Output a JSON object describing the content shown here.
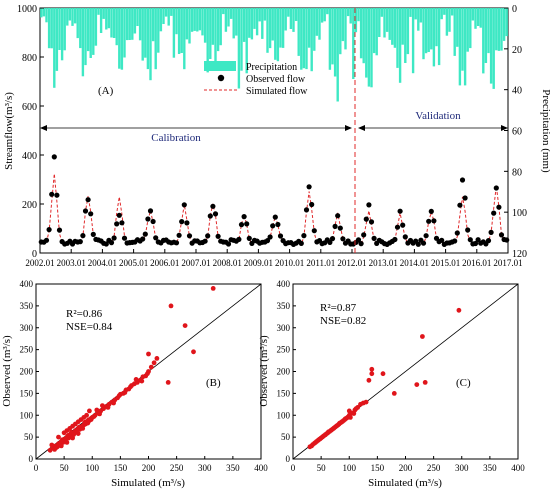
{
  "chart_data": [
    {
      "panel_label": "(A)",
      "type": "line",
      "ylabel": "Streamflow(m³/s)",
      "y2label": "Precipitation (mm)",
      "ylim": [
        0,
        1000
      ],
      "y2lim": [
        120,
        0
      ],
      "xlim": [
        2002.01,
        2017.01
      ],
      "yticks": [
        "0",
        "200",
        "400",
        "600",
        "800",
        "1000"
      ],
      "y2ticks": [
        "0",
        "20",
        "40",
        "60",
        "80",
        "100",
        "120"
      ],
      "xticks": [
        "2002.01",
        "2003.01",
        "2004.01",
        "2005.01",
        "2006.01",
        "2007.01",
        "2008.01",
        "2009.01",
        "2010.01",
        "2011.01",
        "2012.01",
        "2013.01",
        "2014.01",
        "2015.01",
        "2016.01",
        "2017.01"
      ],
      "legend": {
        "position": "top-center",
        "entries": [
          "Precipitation",
          "Observed flow",
          "Simulated flow"
        ]
      },
      "period_labels": {
        "calibration": "Calibration",
        "validation": "Validation",
        "split": 2012.01
      },
      "annual_peaks_observed": [
        {
          "year": 2002,
          "value": 390
        },
        {
          "year": 2003,
          "value": 245
        },
        {
          "year": 2004,
          "value": 180
        },
        {
          "year": 2005,
          "value": 200
        },
        {
          "year": 2006,
          "value": 195
        },
        {
          "year": 2007,
          "value": 220
        },
        {
          "year": 2008,
          "value": 175
        },
        {
          "year": 2009,
          "value": 160
        },
        {
          "year": 2010,
          "value": 300
        },
        {
          "year": 2011,
          "value": 160
        },
        {
          "year": 2012,
          "value": 200
        },
        {
          "year": 2013,
          "value": 175
        },
        {
          "year": 2014,
          "value": 185
        },
        {
          "year": 2015,
          "value": 340
        },
        {
          "year": 2016,
          "value": 280
        }
      ],
      "annual_peaks_simulated": [
        {
          "year": 2002,
          "value": 320
        },
        {
          "year": 2003,
          "value": 240
        },
        {
          "year": 2004,
          "value": 235
        },
        {
          "year": 2005,
          "value": 185
        },
        {
          "year": 2006,
          "value": 195
        },
        {
          "year": 2007,
          "value": 210
        },
        {
          "year": 2008,
          "value": 165
        },
        {
          "year": 2009,
          "value": 155
        },
        {
          "year": 2010,
          "value": 260
        },
        {
          "year": 2011,
          "value": 165
        },
        {
          "year": 2012,
          "value": 170
        },
        {
          "year": 2013,
          "value": 165
        },
        {
          "year": 2014,
          "value": 175
        },
        {
          "year": 2015,
          "value": 235
        },
        {
          "year": 2016,
          "value": 280
        }
      ],
      "baseflow_range": [
        25,
        60
      ]
    },
    {
      "panel_label": "(B)",
      "type": "scatter",
      "xlabel": "Simulated (m³/s)",
      "ylabel": "Observed (m³/s)",
      "xlim": [
        0,
        400
      ],
      "ylim": [
        0,
        400
      ],
      "ticks": [
        "0",
        "50",
        "100",
        "150",
        "200",
        "250",
        "300",
        "350",
        "400"
      ],
      "stats": [
        "R²=0.86",
        "NSE=0.84"
      ],
      "points": [
        [
          30,
          25
        ],
        [
          33,
          22
        ],
        [
          35,
          30
        ],
        [
          38,
          28
        ],
        [
          40,
          35
        ],
        [
          42,
          33
        ],
        [
          45,
          40
        ],
        [
          48,
          38
        ],
        [
          50,
          45
        ],
        [
          52,
          42
        ],
        [
          55,
          50
        ],
        [
          58,
          48
        ],
        [
          60,
          55
        ],
        [
          62,
          52
        ],
        [
          65,
          58
        ],
        [
          68,
          60
        ],
        [
          70,
          65
        ],
        [
          72,
          62
        ],
        [
          75,
          70
        ],
        [
          78,
          68
        ],
        [
          80,
          72
        ],
        [
          82,
          75
        ],
        [
          85,
          78
        ],
        [
          88,
          80
        ],
        [
          90,
          85
        ],
        [
          92,
          82
        ],
        [
          95,
          88
        ],
        [
          98,
          90
        ],
        [
          100,
          95
        ],
        [
          105,
          100
        ],
        [
          110,
          105
        ],
        [
          115,
          110
        ],
        [
          120,
          115
        ],
        [
          125,
          120
        ],
        [
          130,
          125
        ],
        [
          135,
          130
        ],
        [
          140,
          135
        ],
        [
          145,
          140
        ],
        [
          150,
          148
        ],
        [
          155,
          150
        ],
        [
          160,
          158
        ],
        [
          165,
          160
        ],
        [
          170,
          168
        ],
        [
          175,
          172
        ],
        [
          180,
          175
        ],
        [
          185,
          180
        ],
        [
          190,
          188
        ],
        [
          195,
          190
        ],
        [
          200,
          200
        ],
        [
          205,
          210
        ],
        [
          210,
          220
        ],
        [
          215,
          230
        ],
        [
          200,
          240
        ],
        [
          235,
          175
        ],
        [
          240,
          350
        ],
        [
          265,
          305
        ],
        [
          280,
          245
        ],
        [
          315,
          390
        ],
        [
          25,
          20
        ],
        [
          28,
          32
        ],
        [
          36,
          26
        ],
        [
          44,
          37
        ],
        [
          47,
          44
        ],
        [
          53,
          46
        ],
        [
          57,
          54
        ],
        [
          63,
          61
        ],
        [
          67,
          56
        ],
        [
          73,
          67
        ],
        [
          77,
          73
        ],
        [
          83,
          70
        ],
        [
          87,
          84
        ],
        [
          93,
          89
        ],
        [
          97,
          92
        ],
        [
          103,
          97
        ],
        [
          108,
          112
        ],
        [
          113,
          103
        ],
        [
          118,
          122
        ],
        [
          128,
          118
        ],
        [
          138,
          128
        ],
        [
          148,
          145
        ],
        [
          158,
          152
        ],
        [
          168,
          165
        ],
        [
          178,
          182
        ],
        [
          188,
          178
        ],
        [
          198,
          195
        ],
        [
          50,
          60
        ],
        [
          60,
          70
        ],
        [
          70,
          80
        ],
        [
          80,
          90
        ],
        [
          90,
          100
        ],
        [
          40,
          50
        ],
        [
          55,
          65
        ],
        [
          65,
          75
        ],
        [
          75,
          85
        ],
        [
          85,
          95
        ],
        [
          95,
          110
        ],
        [
          45,
          30
        ],
        [
          55,
          38
        ],
        [
          65,
          48
        ],
        [
          75,
          58
        ]
      ]
    },
    {
      "panel_label": "(C)",
      "type": "scatter",
      "xlabel": "Simulated (m³/s)",
      "ylabel": "Observed (m³/s)",
      "xlim": [
        0,
        400
      ],
      "ylim": [
        0,
        400
      ],
      "ticks": [
        "0",
        "50",
        "100",
        "150",
        "200",
        "250",
        "300",
        "350",
        "400"
      ],
      "stats": [
        "R²=0.87",
        "NSE=0.82"
      ],
      "points": [
        [
          30,
          28
        ],
        [
          33,
          30
        ],
        [
          35,
          33
        ],
        [
          38,
          36
        ],
        [
          40,
          38
        ],
        [
          42,
          40
        ],
        [
          45,
          43
        ],
        [
          48,
          46
        ],
        [
          50,
          48
        ],
        [
          52,
          50
        ],
        [
          55,
          53
        ],
        [
          58,
          56
        ],
        [
          60,
          58
        ],
        [
          62,
          60
        ],
        [
          65,
          63
        ],
        [
          68,
          66
        ],
        [
          70,
          68
        ],
        [
          72,
          70
        ],
        [
          75,
          73
        ],
        [
          78,
          76
        ],
        [
          80,
          78
        ],
        [
          82,
          80
        ],
        [
          85,
          83
        ],
        [
          88,
          86
        ],
        [
          90,
          88
        ],
        [
          92,
          90
        ],
        [
          95,
          93
        ],
        [
          98,
          96
        ],
        [
          100,
          100
        ],
        [
          100,
          110
        ],
        [
          105,
          105
        ],
        [
          110,
          112
        ],
        [
          115,
          118
        ],
        [
          120,
          125
        ],
        [
          125,
          128
        ],
        [
          130,
          130
        ],
        [
          135,
          180
        ],
        [
          140,
          195
        ],
        [
          140,
          205
        ],
        [
          160,
          195
        ],
        [
          180,
          150
        ],
        [
          220,
          170
        ],
        [
          230,
          280
        ],
        [
          235,
          175
        ],
        [
          295,
          340
        ],
        [
          44,
          42
        ],
        [
          47,
          45
        ],
        [
          53,
          51
        ],
        [
          57,
          55
        ],
        [
          63,
          62
        ],
        [
          67,
          65
        ],
        [
          73,
          71
        ],
        [
          77,
          75
        ],
        [
          83,
          82
        ],
        [
          87,
          85
        ],
        [
          93,
          92
        ],
        [
          97,
          95
        ],
        [
          102,
          95
        ],
        [
          108,
          104
        ],
        [
          112,
          115
        ]
      ]
    }
  ]
}
